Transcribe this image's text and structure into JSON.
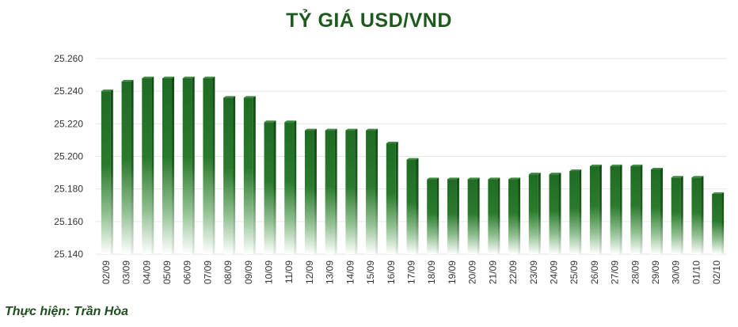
{
  "chart_data": {
    "type": "bar",
    "title": "TỶ GIÁ USD/VND",
    "categories": [
      "02/09",
      "03/09",
      "04/09",
      "05/09",
      "06/09",
      "07/09",
      "08/09",
      "09/09",
      "10/09",
      "11/09",
      "12/09",
      "13/09",
      "14/09",
      "15/09",
      "16/09",
      "17/09",
      "18/09",
      "19/09",
      "20/09",
      "21/09",
      "22/09",
      "23/09",
      "24/09",
      "25/09",
      "26/09",
      "27/09",
      "28/09",
      "29/09",
      "30/09",
      "01/10",
      "02/10"
    ],
    "values": [
      25240,
      25246,
      25248,
      25248,
      25248,
      25248,
      25236,
      25236,
      25221,
      25221,
      25216,
      25216,
      25216,
      25216,
      25208,
      25198,
      25186,
      25186,
      25186,
      25186,
      25186,
      25189,
      25189,
      25191,
      25194,
      25194,
      25194,
      25192,
      25187,
      25187,
      25177
    ],
    "yticks": [
      "25.140",
      "25.160",
      "25.180",
      "25.200",
      "25.220",
      "25.240",
      "25.260"
    ],
    "ylim": [
      25140,
      25260
    ],
    "xlabel": "",
    "ylabel": "",
    "grid": true,
    "bar_color": "#1f6b23",
    "bar_color_light": "#ffffff"
  },
  "credit": "Thực hiện: Trần Hòa"
}
